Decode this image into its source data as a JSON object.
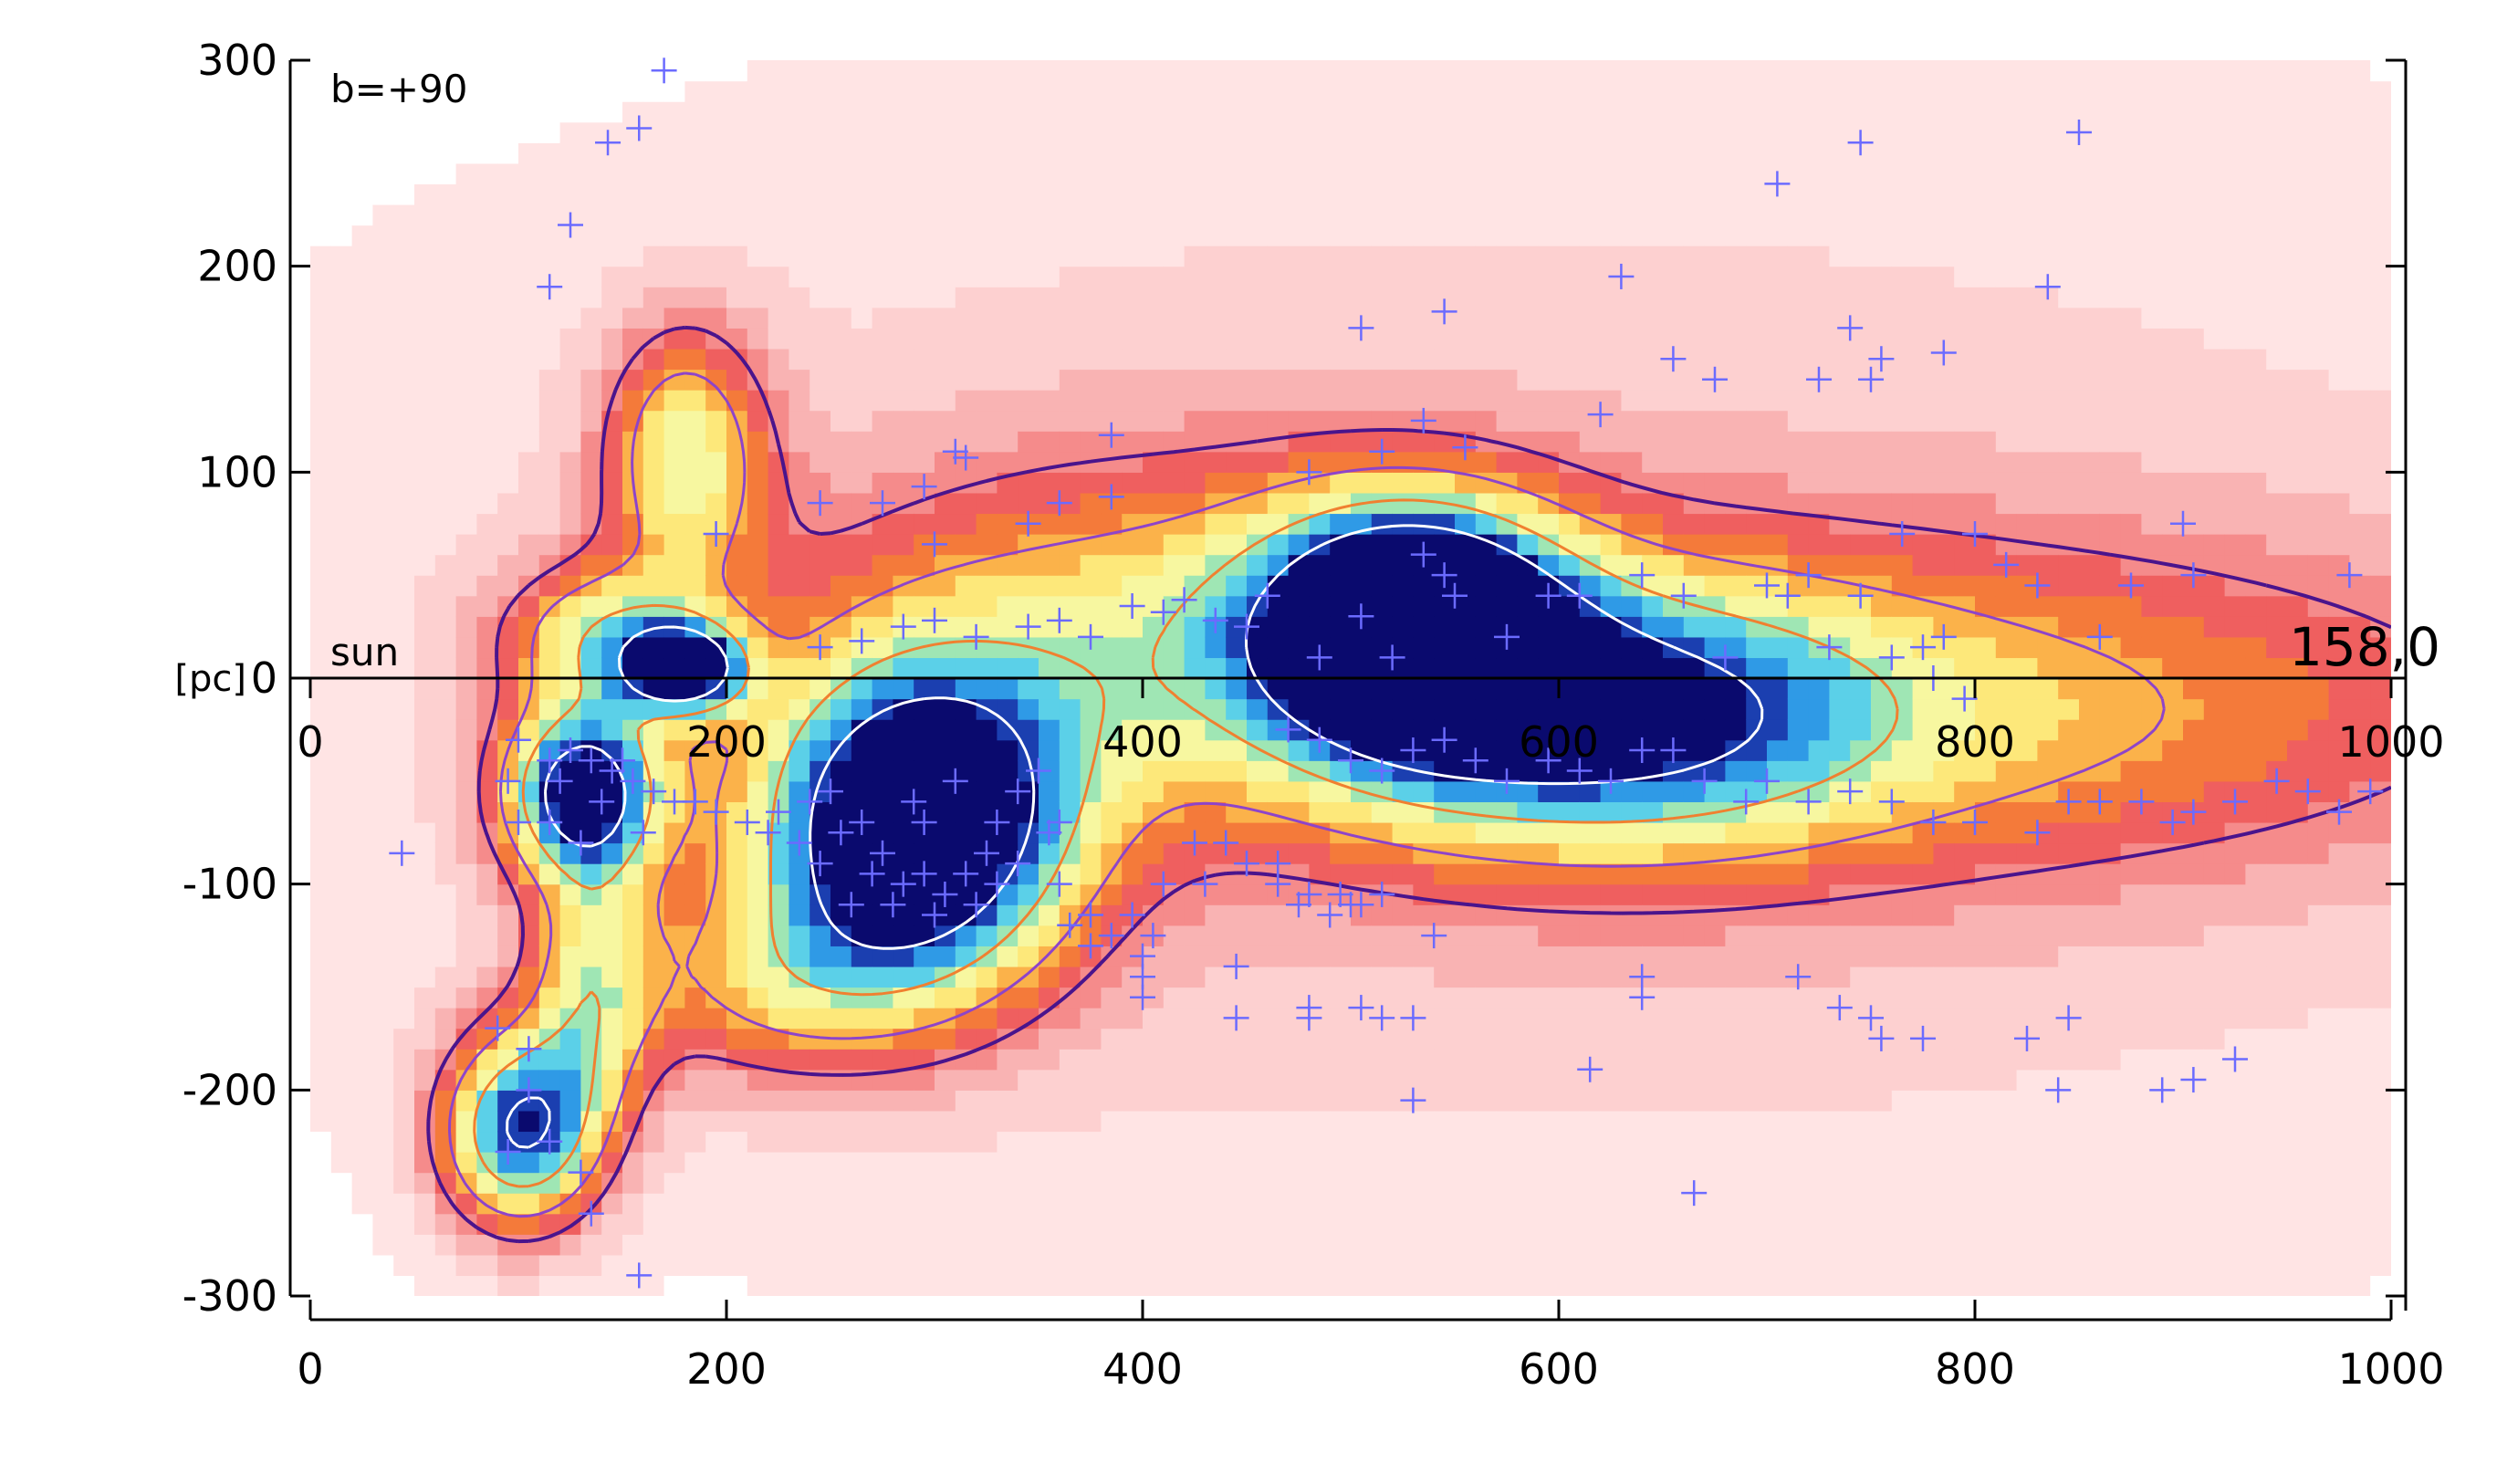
{
  "chart_data": {
    "type": "heatmap",
    "title": "",
    "xlabel": "",
    "ylabel": "",
    "xlim": [
      0,
      1000
    ],
    "ylim": [
      -300,
      300
    ],
    "x_ticks": [
      "0",
      "200",
      "400",
      "600",
      "800",
      "1000"
    ],
    "y_ticks": [
      "300",
      "200",
      "100",
      "0",
      "-100",
      "-200",
      "-300"
    ],
    "inner_x_ticks": [
      "0",
      "200",
      "400",
      "600",
      "800",
      "1000"
    ],
    "inner_y_unit": "[pc]",
    "annotations": {
      "latitude": "b=+90",
      "sun": "sun",
      "direction": "158,0"
    },
    "grid": false,
    "colormap": [
      "#ffffff",
      "#ffe4e4",
      "#fdd0d0",
      "#f9b3b3",
      "#f58b8b",
      "#ef5f5f",
      "#f47a3a",
      "#fbb24a",
      "#fde87a",
      "#f7f7a0",
      "#9fe6b4",
      "#5bd0e8",
      "#2f9ae6",
      "#1b3fb0",
      "#0a0a6e"
    ],
    "contour_colors": [
      "#4a148c",
      "#8e44c9",
      "#f08030",
      "#ffffff"
    ],
    "marker": {
      "symbol": "+",
      "color": "#6b6bff"
    },
    "density_blobs": [
      {
        "x": 290,
        "y": -75,
        "sx": 55,
        "sy": 55,
        "amp": 1.0,
        "rot": 0
      },
      {
        "x": 130,
        "y": -55,
        "sx": 28,
        "sy": 30,
        "amp": 0.85,
        "rot": 0
      },
      {
        "x": 180,
        "y": 5,
        "sx": 20,
        "sy": 15,
        "amp": 0.75,
        "rot": 0
      },
      {
        "x": 140,
        "y": 20,
        "sx": 35,
        "sy": 25,
        "amp": 0.45,
        "rot": 0
      },
      {
        "x": 100,
        "y": -220,
        "sx": 28,
        "sy": 35,
        "amp": 0.8,
        "rot": 0
      },
      {
        "x": 180,
        "y": 110,
        "sx": 28,
        "sy": 45,
        "amp": 0.5,
        "rot": 0
      },
      {
        "x": 530,
        "y": 30,
        "sx": 50,
        "sy": 40,
        "amp": 0.85,
        "rot": 0
      },
      {
        "x": 620,
        "y": -20,
        "sx": 90,
        "sy": 45,
        "amp": 0.5,
        "rot": 0
      },
      {
        "x": 135,
        "y": -150,
        "sx": 22,
        "sy": 50,
        "amp": 0.4,
        "rot": 0
      },
      {
        "x": 220,
        "y": -150,
        "sx": 60,
        "sy": 35,
        "amp": 0.3,
        "rot": 0
      },
      {
        "x": 750,
        "y": -15,
        "sx": 250,
        "sy": 60,
        "amp": 0.35,
        "rot": 0
      },
      {
        "x": 400,
        "y": 30,
        "sx": 120,
        "sy": 60,
        "amp": 0.3,
        "rot": 0
      },
      {
        "x": 600,
        "y": 0,
        "sx": 500,
        "sy": 230,
        "amp": 0.2,
        "rot": 0
      }
    ],
    "points": [
      [
        170,
        295
      ],
      [
        158,
        267
      ],
      [
        143,
        260
      ],
      [
        125,
        220
      ],
      [
        115,
        190
      ],
      [
        44,
        -85
      ],
      [
        105,
        -200
      ],
      [
        130,
        -240
      ],
      [
        135,
        -260
      ],
      [
        158,
        -290
      ],
      [
        105,
        -180
      ],
      [
        90,
        -170
      ],
      [
        95,
        -230
      ],
      [
        115,
        -225
      ],
      [
        195,
        70
      ],
      [
        245,
        85
      ],
      [
        275,
        85
      ],
      [
        295,
        93
      ],
      [
        315,
        107
      ],
      [
        310,
        110
      ],
      [
        345,
        75
      ],
      [
        360,
        85
      ],
      [
        385,
        118
      ],
      [
        385,
        88
      ],
      [
        300,
        65
      ],
      [
        245,
        15
      ],
      [
        265,
        18
      ],
      [
        285,
        25
      ],
      [
        300,
        28
      ],
      [
        320,
        20
      ],
      [
        345,
        25
      ],
      [
        360,
        28
      ],
      [
        375,
        20
      ],
      [
        395,
        35
      ],
      [
        410,
        32
      ],
      [
        420,
        38
      ],
      [
        435,
        28
      ],
      [
        450,
        25
      ],
      [
        460,
        40
      ],
      [
        480,
        100
      ],
      [
        505,
        170
      ],
      [
        515,
        110
      ],
      [
        535,
        125
      ],
      [
        545,
        178
      ],
      [
        555,
        112
      ],
      [
        535,
        60
      ],
      [
        545,
        50
      ],
      [
        550,
        40
      ],
      [
        520,
        10
      ],
      [
        505,
        30
      ],
      [
        485,
        10
      ],
      [
        575,
        20
      ],
      [
        595,
        40
      ],
      [
        610,
        40
      ],
      [
        620,
        128
      ],
      [
        630,
        195
      ],
      [
        655,
        155
      ],
      [
        675,
        145
      ],
      [
        705,
        240
      ],
      [
        740,
        170
      ],
      [
        745,
        260
      ],
      [
        725,
        145
      ],
      [
        750,
        145
      ],
      [
        755,
        155
      ],
      [
        785,
        158
      ],
      [
        765,
        70
      ],
      [
        775,
        15
      ],
      [
        760,
        10
      ],
      [
        780,
        0
      ],
      [
        795,
        -10
      ],
      [
        785,
        20
      ],
      [
        800,
        70
      ],
      [
        815,
        55
      ],
      [
        830,
        45
      ],
      [
        835,
        190
      ],
      [
        850,
        265
      ],
      [
        860,
        20
      ],
      [
        875,
        45
      ],
      [
        900,
        75
      ],
      [
        905,
        50
      ],
      [
        980,
        50
      ],
      [
        720,
        50
      ],
      [
        710,
        40
      ],
      [
        700,
        45
      ],
      [
        660,
        40
      ],
      [
        640,
        50
      ],
      [
        730,
        15
      ],
      [
        745,
        40
      ],
      [
        680,
        10
      ],
      [
        250,
        -55
      ],
      [
        265,
        -70
      ],
      [
        275,
        -85
      ],
      [
        285,
        -100
      ],
      [
        295,
        -95
      ],
      [
        305,
        -105
      ],
      [
        315,
        -95
      ],
      [
        325,
        -85
      ],
      [
        330,
        -70
      ],
      [
        340,
        -55
      ],
      [
        350,
        -45
      ],
      [
        360,
        -70
      ],
      [
        355,
        -75
      ],
      [
        340,
        -90
      ],
      [
        330,
        -100
      ],
      [
        270,
        -95
      ],
      [
        260,
        -110
      ],
      [
        280,
        -110
      ],
      [
        300,
        -115
      ],
      [
        320,
        -110
      ],
      [
        245,
        -90
      ],
      [
        255,
        -75
      ],
      [
        290,
        -60
      ],
      [
        310,
        -50
      ],
      [
        295,
        -70
      ],
      [
        210,
        -70
      ],
      [
        220,
        -75
      ],
      [
        225,
        -65
      ],
      [
        235,
        -80
      ],
      [
        240,
        -60
      ],
      [
        195,
        -65
      ],
      [
        185,
        -60
      ],
      [
        175,
        -60
      ],
      [
        165,
        -55
      ],
      [
        155,
        -50
      ],
      [
        145,
        -45
      ],
      [
        135,
        -40
      ],
      [
        125,
        -35
      ],
      [
        150,
        -40
      ],
      [
        140,
        -60
      ],
      [
        120,
        -50
      ],
      [
        115,
        -40
      ],
      [
        115,
        -70
      ],
      [
        130,
        -80
      ],
      [
        160,
        -75
      ],
      [
        100,
        -30
      ],
      [
        95,
        -50
      ],
      [
        100,
        -70
      ],
      [
        360,
        -100
      ],
      [
        365,
        -120
      ],
      [
        375,
        -115
      ],
      [
        385,
        -125
      ],
      [
        375,
        -130
      ],
      [
        395,
        -115
      ],
      [
        400,
        -135
      ],
      [
        405,
        -125
      ],
      [
        400,
        -145
      ],
      [
        400,
        -155
      ],
      [
        410,
        -100
      ],
      [
        425,
        -80
      ],
      [
        440,
        -80
      ],
      [
        450,
        -90
      ],
      [
        445,
        -140
      ],
      [
        445,
        -165
      ],
      [
        430,
        -100
      ],
      [
        465,
        -100
      ],
      [
        465,
        -90
      ],
      [
        475,
        -110
      ],
      [
        480,
        -105
      ],
      [
        490,
        -115
      ],
      [
        500,
        -110
      ],
      [
        495,
        -105
      ],
      [
        505,
        -110
      ],
      [
        480,
        -160
      ],
      [
        480,
        -165
      ],
      [
        505,
        -160
      ],
      [
        515,
        -165
      ],
      [
        530,
        -165
      ],
      [
        515,
        -105
      ],
      [
        530,
        -205
      ],
      [
        540,
        -125
      ],
      [
        470,
        -25
      ],
      [
        485,
        -30
      ],
      [
        500,
        -40
      ],
      [
        515,
        -45
      ],
      [
        530,
        -35
      ],
      [
        545,
        -30
      ],
      [
        560,
        -40
      ],
      [
        575,
        -50
      ],
      [
        595,
        -40
      ],
      [
        610,
        -45
      ],
      [
        625,
        -50
      ],
      [
        640,
        -35
      ],
      [
        655,
        -35
      ],
      [
        670,
        -50
      ],
      [
        690,
        -60
      ],
      [
        700,
        -50
      ],
      [
        720,
        -60
      ],
      [
        740,
        -55
      ],
      [
        760,
        -60
      ],
      [
        780,
        -70
      ],
      [
        800,
        -70
      ],
      [
        830,
        -75
      ],
      [
        845,
        -60
      ],
      [
        860,
        -60
      ],
      [
        880,
        -60
      ],
      [
        895,
        -70
      ],
      [
        905,
        -65
      ],
      [
        925,
        -60
      ],
      [
        945,
        -50
      ],
      [
        960,
        -55
      ],
      [
        975,
        -65
      ],
      [
        990,
        -55
      ],
      [
        615,
        -190
      ],
      [
        640,
        -145
      ],
      [
        640,
        -155
      ],
      [
        665,
        -250
      ],
      [
        715,
        -145
      ],
      [
        735,
        -160
      ],
      [
        750,
        -165
      ],
      [
        755,
        -175
      ],
      [
        775,
        -175
      ],
      [
        825,
        -175
      ],
      [
        845,
        -165
      ],
      [
        840,
        -200
      ],
      [
        890,
        -200
      ],
      [
        905,
        -195
      ],
      [
        925,
        -185
      ]
    ]
  }
}
